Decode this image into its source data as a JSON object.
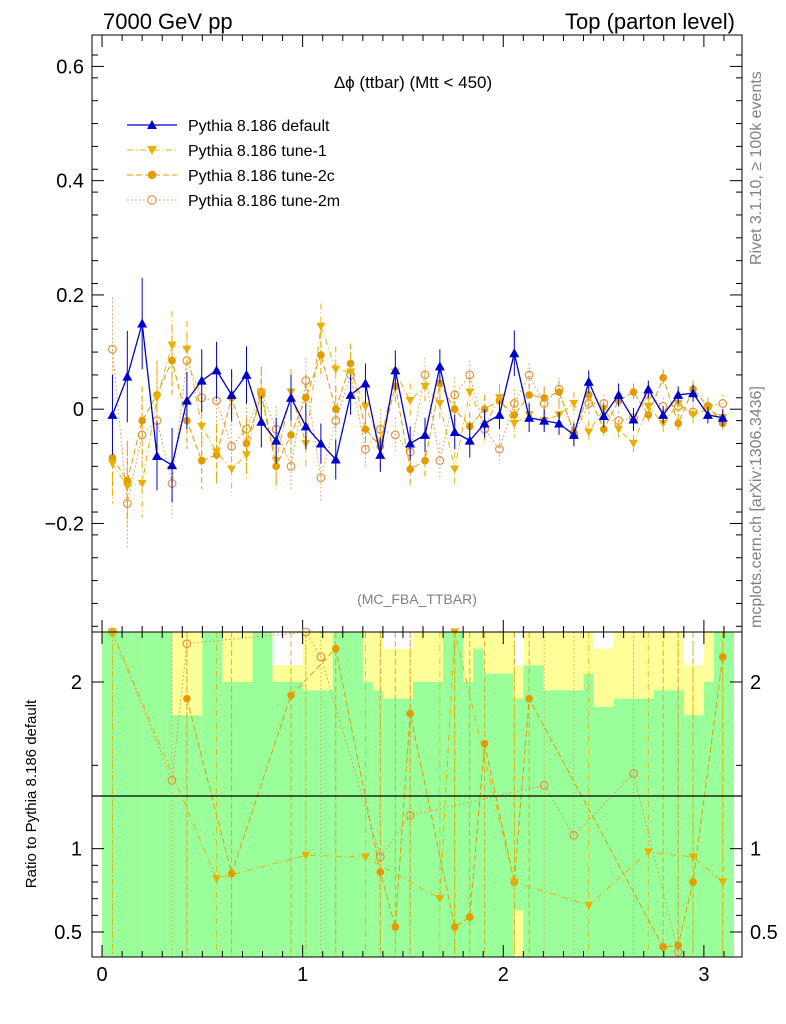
{
  "header": {
    "left": "7000 GeV pp",
    "right": "Top (parton level)"
  },
  "side_labels": {
    "rivet": "Rivet 3.1.10, ≥ 100k events",
    "source": "mcplots.cern.ch [arXiv:1306.3436]"
  },
  "chart_data": {
    "type": "line",
    "title": "Δϕ (ttbar) (Mtt < 450)",
    "analysis_label": "(MC_FBA_TTBAR)",
    "xlabel": "",
    "ylabel": "",
    "xlim": [
      -0.05,
      3.19
    ],
    "ylim": [
      -0.39,
      0.655
    ],
    "x_ticks": [
      "0",
      "1",
      "2",
      "3"
    ],
    "y_ticks": [
      "−0.2",
      "0",
      "0.2",
      "0.4",
      "0.6"
    ],
    "x": [
      0.052,
      0.126,
      0.2,
      0.274,
      0.349,
      0.423,
      0.497,
      0.571,
      0.646,
      0.72,
      0.794,
      0.868,
      0.942,
      1.016,
      1.091,
      1.165,
      1.239,
      1.313,
      1.387,
      1.462,
      1.536,
      1.61,
      1.684,
      1.758,
      1.833,
      1.907,
      1.981,
      2.055,
      2.129,
      2.204,
      2.278,
      2.352,
      2.426,
      2.501,
      2.575,
      2.649,
      2.723,
      2.797,
      2.872,
      2.946,
      3.02,
      3.094
    ],
    "series": [
      {
        "name": "Pythia 8.186 default",
        "color": "#0000cc",
        "marker": "triangle-up",
        "line": "solid",
        "values": [
          -0.01,
          0.057,
          0.15,
          -0.082,
          -0.098,
          0.015,
          0.05,
          0.068,
          0.025,
          0.06,
          -0.022,
          -0.055,
          0.02,
          -0.03,
          -0.06,
          -0.088,
          0.025,
          0.045,
          -0.08,
          0.068,
          -0.06,
          -0.045,
          0.075,
          -0.04,
          -0.055,
          -0.025,
          -0.01,
          0.098,
          -0.015,
          -0.02,
          -0.025,
          -0.045,
          0.048,
          -0.012,
          0.025,
          -0.018,
          0.035,
          -0.01,
          0.025,
          0.028,
          -0.01,
          -0.015
        ],
        "errors": [
          0.07,
          0.08,
          0.08,
          0.06,
          0.065,
          0.05,
          0.055,
          0.05,
          0.045,
          0.05,
          0.045,
          0.04,
          0.04,
          0.04,
          0.035,
          0.035,
          0.035,
          0.035,
          0.03,
          0.035,
          0.03,
          0.03,
          0.03,
          0.03,
          0.03,
          0.025,
          0.025,
          0.04,
          0.025,
          0.02,
          0.02,
          0.02,
          0.02,
          0.02,
          0.02,
          0.02,
          0.015,
          0.015,
          0.015,
          0.015,
          0.015,
          0.015
        ]
      },
      {
        "name": "Pythia 8.186 tune-1",
        "color": "#e8b000",
        "marker": "triangle-down",
        "line": "dashdot",
        "values": [
          -0.095,
          -0.135,
          -0.13,
          0.02,
          0.112,
          0.105,
          -0.03,
          -0.075,
          -0.105,
          -0.08,
          0.03,
          -0.09,
          0.03,
          -0.06,
          0.145,
          0.07,
          0.065,
          0.005,
          -0.06,
          0.065,
          0.015,
          0.04,
          0.01,
          -0.105,
          0.03,
          -0.03,
          0.02,
          -0.025,
          -0.01,
          -0.02,
          -0.01,
          0.01,
          -0.04,
          0.0,
          -0.035,
          -0.06,
          0.005,
          -0.025,
          0.01,
          -0.01,
          0.0,
          -0.015
        ],
        "errors": [
          0.07,
          0.07,
          0.06,
          0.06,
          0.06,
          0.05,
          0.05,
          0.05,
          0.045,
          0.045,
          0.045,
          0.04,
          0.04,
          0.04,
          0.04,
          0.04,
          0.035,
          0.035,
          0.035,
          0.03,
          0.03,
          0.03,
          0.03,
          0.03,
          0.025,
          0.025,
          0.025,
          0.025,
          0.02,
          0.02,
          0.02,
          0.02,
          0.02,
          0.015,
          0.015,
          0.015,
          0.015,
          0.015,
          0.015,
          0.015,
          0.015,
          0.015
        ]
      },
      {
        "name": "Pythia 8.186 tune-2c",
        "color": "#e39b00",
        "marker": "circle",
        "line": "dashed",
        "values": [
          -0.085,
          -0.125,
          -0.02,
          0.025,
          0.085,
          -0.02,
          -0.09,
          -0.08,
          0.02,
          -0.06,
          0.025,
          -0.1,
          -0.045,
          0.02,
          0.095,
          0.0,
          0.08,
          -0.035,
          -0.065,
          0.04,
          -0.105,
          -0.09,
          0.045,
          0.0,
          -0.03,
          0.0,
          0.015,
          -0.01,
          0.025,
          0.02,
          0.03,
          -0.04,
          0.025,
          -0.035,
          0.015,
          0.03,
          -0.01,
          0.055,
          -0.025,
          0.035,
          0.005,
          -0.025
        ],
        "errors": [
          0.07,
          0.07,
          0.06,
          0.06,
          0.06,
          0.05,
          0.05,
          0.05,
          0.045,
          0.045,
          0.045,
          0.04,
          0.04,
          0.04,
          0.04,
          0.04,
          0.035,
          0.035,
          0.035,
          0.03,
          0.03,
          0.03,
          0.03,
          0.03,
          0.025,
          0.025,
          0.025,
          0.025,
          0.02,
          0.02,
          0.02,
          0.02,
          0.02,
          0.015,
          0.015,
          0.015,
          0.015,
          0.015,
          0.015,
          0.015,
          0.015,
          0.015
        ]
      },
      {
        "name": "Pythia 8.186 tune-2m",
        "color": "#dd9440",
        "marker": "circle-open",
        "line": "dotted",
        "values": [
          0.105,
          -0.165,
          -0.045,
          -0.02,
          -0.13,
          0.085,
          0.02,
          0.015,
          -0.065,
          -0.035,
          0.03,
          -0.035,
          -0.1,
          0.05,
          -0.12,
          -0.02,
          0.06,
          -0.07,
          -0.035,
          -0.045,
          -0.075,
          0.06,
          -0.09,
          0.025,
          0.06,
          -0.035,
          -0.07,
          0.01,
          0.06,
          0.01,
          0.035,
          -0.045,
          0.01,
          0.01,
          -0.02,
          -0.015,
          0.025,
          0.005,
          0.005,
          -0.005,
          0.005,
          0.01
        ],
        "errors": [
          0.09,
          0.08,
          0.06,
          0.06,
          0.06,
          0.05,
          0.05,
          0.05,
          0.045,
          0.045,
          0.045,
          0.04,
          0.04,
          0.04,
          0.04,
          0.04,
          0.035,
          0.035,
          0.035,
          0.03,
          0.03,
          0.03,
          0.03,
          0.03,
          0.025,
          0.025,
          0.025,
          0.025,
          0.02,
          0.02,
          0.02,
          0.02,
          0.02,
          0.015,
          0.015,
          0.015,
          0.015,
          0.015,
          0.015,
          0.015,
          0.015,
          0.015
        ]
      }
    ],
    "ratio": {
      "ylabel": "Ratio to Pythia 8.186 default",
      "ylim": [
        0.35,
        2.3
      ],
      "y_ticks": [
        "0.5",
        "1",
        "2"
      ],
      "reference_line": 1,
      "band_edges": [
        0,
        0.15,
        0.2,
        0.35,
        0.5,
        0.6,
        0.75,
        0.85,
        1.0,
        1.15,
        1.3,
        1.35,
        1.4,
        1.55,
        1.7,
        1.8,
        1.85,
        1.9,
        2.05,
        2.1,
        2.2,
        2.4,
        2.45,
        2.55,
        2.75,
        2.9,
        3.0,
        3.05,
        3.15
      ],
      "green_band": {
        "color": "#9aff9a",
        "upper": [
          2.3,
          2.3,
          2.3,
          1.8,
          2.3,
          2.0,
          2.3,
          2.0,
          1.95,
          2.3,
          2.0,
          1.95,
          1.9,
          2.0,
          2.3,
          2.0,
          2.2,
          2.05,
          1.9,
          2.1,
          1.95,
          2.05,
          1.85,
          1.9,
          1.95,
          1.8,
          2.0,
          2.3
        ],
        "lower": [
          0.35,
          0.35,
          0.35,
          0.35,
          0.35,
          0.35,
          0.35,
          0.35,
          0.35,
          0.35,
          0.35,
          0.35,
          0.35,
          0.35,
          0.35,
          0.35,
          0.35,
          0.35,
          0.63,
          0.35,
          0.35,
          0.35,
          0.35,
          0.35,
          0.35,
          0.35,
          0.35,
          0.35
        ]
      },
      "yellow_band": {
        "color": "#ffff99",
        "upper": [
          2.3,
          2.2,
          2.3,
          2.3,
          2.3,
          2.3,
          2.3,
          2.1,
          2.3,
          2.3,
          2.3,
          2.3,
          2.2,
          2.3,
          2.3,
          2.3,
          2.3,
          2.3,
          2.1,
          2.3,
          2.3,
          2.3,
          2.2,
          2.3,
          2.3,
          2.1,
          2.3,
          2.3
        ],
        "lower": [
          0.35,
          0.35,
          0.45,
          0.35,
          0.35,
          0.35,
          0.35,
          0.35,
          0.35,
          0.35,
          0.35,
          0.35,
          0.35,
          0.35,
          0.35,
          0.35,
          0.35,
          0.35,
          0.35,
          0.35,
          0.35,
          0.35,
          0.35,
          0.35,
          0.35,
          0.35,
          0.35,
          0.35
        ]
      },
      "points": [
        {
          "series": "Pythia 8.186 tune-2c",
          "x": [
            0.423,
            0.646,
            0.942,
            1.165,
            1.387,
            1.462,
            1.536,
            1.758,
            1.833,
            1.907,
            2.055,
            2.129,
            2.797,
            2.872,
            2.946,
            3.094
          ],
          "values": [
            1.9,
            0.85,
            1.92,
            2.2,
            0.86,
            0.53,
            1.81,
            0.53,
            0.59,
            1.63,
            0.8,
            1.9,
            0.41,
            0.42,
            0.8,
            2.15
          ]
        },
        {
          "series": "Pythia 8.186 tune-2m",
          "x": [
            0.052,
            0.349,
            0.423,
            1.016,
            1.091,
            1.387,
            1.536,
            2.204,
            2.352,
            2.649,
            2.872
          ],
          "values": [
            2.3,
            1.41,
            2.23,
            2.3,
            2.15,
            0.95,
            1.2,
            1.38,
            1.08,
            1.45,
            0.38
          ]
        },
        {
          "series": "Pythia 8.186 tune-1",
          "x": [
            0.052,
            0.571,
            1.016,
            1.313,
            1.684,
            1.758,
            2.055,
            2.426,
            2.723,
            2.946,
            3.094
          ],
          "values": [
            2.3,
            0.82,
            0.96,
            0.95,
            0.7,
            2.3,
            0.8,
            0.66,
            0.98,
            0.95,
            0.8
          ]
        }
      ]
    }
  }
}
